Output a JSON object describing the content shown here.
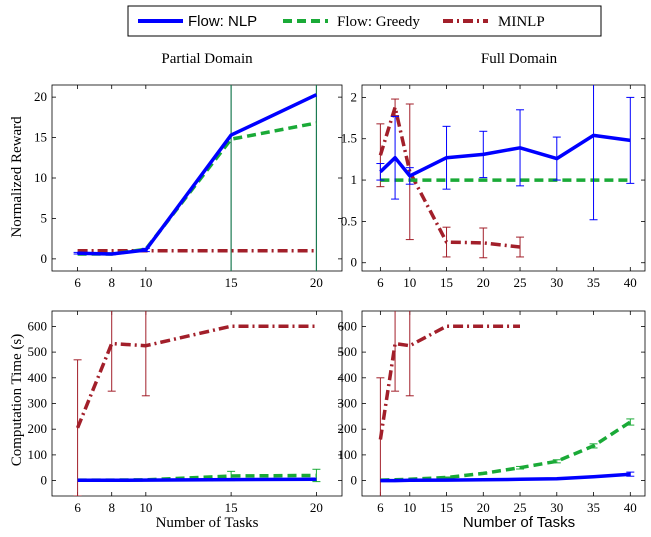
{
  "legend": {
    "placement": "top-center",
    "entries": [
      {
        "label": "Flow: NLP",
        "color": "#0000ff",
        "style": "solid"
      },
      {
        "label": "Flow: Greedy",
        "color": "#1aaa37",
        "style": "dashed"
      },
      {
        "label": "MINLP",
        "color": "#a21f2a",
        "style": "dashdot"
      }
    ]
  },
  "column_titles": [
    "Partial Domain",
    "Full Domain"
  ],
  "ylabels": [
    "Normalized Reward",
    "Computation Time (s)"
  ],
  "xlabel": "Number of Tasks",
  "colors": {
    "nlp": "#0000ff",
    "greedy": "#1aaa37",
    "minlp": "#a21f2a",
    "vline": "#1b7a52"
  },
  "chart_data": [
    {
      "type": "line",
      "panel": "top-left",
      "x_ticks": [
        6,
        8,
        10,
        15,
        20
      ],
      "y_ticks": [
        0,
        5,
        10,
        15,
        20
      ],
      "xlim": [
        4.5,
        21.5
      ],
      "ylim": [
        -1.5,
        21.5
      ],
      "vertical_lines_at_x": [
        15,
        20
      ],
      "series": [
        {
          "name": "Flow: NLP",
          "x": [
            6,
            8,
            10,
            15,
            20
          ],
          "y": [
            0.7,
            0.6,
            1.1,
            15.3,
            20.3
          ],
          "err": [
            0.1,
            0.1,
            0.2,
            0,
            0
          ]
        },
        {
          "name": "Flow: Greedy",
          "x": [
            6,
            8,
            10,
            15,
            20
          ],
          "y": [
            0.6,
            0.6,
            1.2,
            14.8,
            16.8
          ],
          "err": [
            0,
            0,
            0,
            0,
            0
          ]
        },
        {
          "name": "MINLP",
          "x": [
            6,
            8,
            10,
            15,
            20
          ],
          "y": [
            1.0,
            1.0,
            1.0,
            1.0,
            1.0
          ],
          "err": [
            0,
            0,
            0,
            0,
            0
          ]
        }
      ]
    },
    {
      "type": "line",
      "panel": "top-right",
      "x_ticks": [
        6,
        10,
        15,
        20,
        25,
        30,
        35,
        40
      ],
      "y_ticks": [
        0,
        0.5,
        1,
        1.5,
        2
      ],
      "xlim": [
        3.5,
        42
      ],
      "ylim": [
        -0.1,
        2.15
      ],
      "series": [
        {
          "name": "Flow: NLP",
          "x": [
            6,
            8,
            10,
            15,
            20,
            25,
            30,
            35,
            40
          ],
          "y": [
            1.1,
            1.27,
            1.05,
            1.27,
            1.31,
            1.39,
            1.26,
            1.54,
            1.48
          ],
          "err": [
            0.1,
            0.5,
            0.1,
            0.38,
            0.28,
            0.46,
            0.26,
            1.02,
            0.52
          ]
        },
        {
          "name": "Flow: Greedy",
          "x": [
            6,
            8,
            10,
            15,
            20,
            25,
            30,
            35,
            40
          ],
          "y": [
            1,
            1,
            1,
            1,
            1,
            1,
            1,
            1,
            1
          ],
          "err": [
            0,
            0,
            0,
            0,
            0,
            0,
            0,
            0,
            0
          ]
        },
        {
          "name": "MINLP",
          "x": [
            6,
            8,
            10,
            15,
            20,
            25
          ],
          "y": [
            1.3,
            1.88,
            1.1,
            0.25,
            0.24,
            0.19
          ],
          "err": [
            0.38,
            0.1,
            0.82,
            0.18,
            0.18,
            0.12
          ]
        }
      ]
    },
    {
      "type": "line",
      "panel": "bottom-left",
      "x_ticks": [
        6,
        8,
        10,
        15,
        20
      ],
      "y_ticks": [
        0,
        100,
        200,
        300,
        400,
        500,
        600
      ],
      "xlim": [
        4.5,
        21.5
      ],
      "ylim": [
        -60,
        660
      ],
      "series": [
        {
          "name": "Flow: NLP",
          "x": [
            6,
            8,
            10,
            15,
            20
          ],
          "y": [
            1,
            1,
            2,
            4,
            5
          ],
          "err": [
            0,
            0,
            0,
            0,
            0
          ]
        },
        {
          "name": "Flow: Greedy",
          "x": [
            6,
            8,
            10,
            15,
            20
          ],
          "y": [
            2,
            2,
            3,
            18,
            20
          ],
          "err": [
            0,
            0,
            0,
            18,
            24
          ]
        },
        {
          "name": "MINLP",
          "x": [
            6,
            8,
            10,
            15,
            20
          ],
          "y": [
            205,
            533,
            525,
            601,
            601
          ],
          "err": [
            265,
            185,
            195,
            0,
            0
          ]
        }
      ]
    },
    {
      "type": "line",
      "panel": "bottom-right",
      "x_ticks": [
        6,
        10,
        15,
        20,
        25,
        30,
        35,
        40
      ],
      "y_ticks": [
        0,
        100,
        200,
        300,
        400,
        500,
        600
      ],
      "xlim": [
        3.5,
        42
      ],
      "ylim": [
        -60,
        660
      ],
      "series": [
        {
          "name": "Flow: NLP",
          "x": [
            6,
            8,
            10,
            15,
            20,
            25,
            30,
            35,
            40
          ],
          "y": [
            0,
            0,
            1,
            2,
            3,
            5,
            7,
            15,
            25
          ],
          "err": [
            0,
            0,
            0,
            0,
            0,
            0,
            0,
            3,
            8
          ]
        },
        {
          "name": "Flow: Greedy",
          "x": [
            6,
            8,
            10,
            15,
            20,
            25,
            30,
            35,
            40
          ],
          "y": [
            2,
            3,
            5,
            12,
            28,
            50,
            75,
            135,
            228
          ],
          "err": [
            0,
            0,
            0,
            2,
            3,
            5,
            6,
            8,
            12
          ]
        },
        {
          "name": "MINLP",
          "x": [
            6,
            8,
            10,
            15,
            20,
            25
          ],
          "y": [
            160,
            533,
            525,
            601,
            601,
            601
          ],
          "err": [
            240,
            185,
            195,
            0,
            0,
            0
          ]
        }
      ]
    }
  ]
}
